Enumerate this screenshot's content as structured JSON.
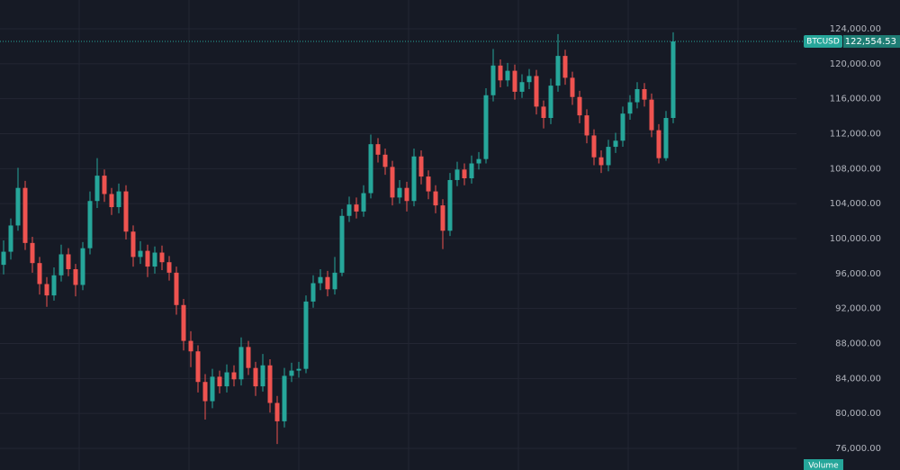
{
  "chart_data": {
    "type": "candlestick",
    "symbol": "BTCUSD",
    "last_price": 122554.53,
    "last_price_label": "122,554.53",
    "volume_label": "Volume",
    "up_color": "#26a69a",
    "down_color": "#ef5350",
    "grid": true,
    "ylim": [
      73528,
      127296
    ],
    "yticks": [
      {
        "value": 76000,
        "label": "76,000.00"
      },
      {
        "value": 80000,
        "label": "80,000.00"
      },
      {
        "value": 84000,
        "label": "84,000.00"
      },
      {
        "value": 88000,
        "label": "88,000.00"
      },
      {
        "value": 92000,
        "label": "92,000.00"
      },
      {
        "value": 96000,
        "label": "96,000.00"
      },
      {
        "value": 100000,
        "label": "100,000.00"
      },
      {
        "value": 104000,
        "label": "104,000.00"
      },
      {
        "value": 108000,
        "label": "108,000.00"
      },
      {
        "value": 112000,
        "label": "112,000.00"
      },
      {
        "value": 116000,
        "label": "116,000.00"
      },
      {
        "value": 120000,
        "label": "120,000.00"
      },
      {
        "value": 124000,
        "label": "124,000.00"
      }
    ],
    "open": [
      97000,
      98500,
      101500,
      105800,
      99500,
      97200,
      94800,
      93500,
      95800,
      98200,
      96500,
      94700,
      98900,
      104300,
      107200,
      105100,
      103600,
      105400,
      100800,
      97900,
      98600,
      96800,
      98400,
      97300,
      96100,
      92400,
      88300,
      87100,
      83600,
      81400,
      84200,
      83100,
      84700,
      83900,
      87600,
      85200,
      83100,
      85500,
      81200,
      79100,
      84300,
      84900,
      85100,
      92800,
      94900,
      95600,
      94200,
      96100,
      102600,
      103900,
      103100,
      105200,
      110800,
      109600,
      108200,
      104700,
      105800,
      104300,
      109400,
      107100,
      105400,
      103800,
      100900,
      106700,
      107900,
      106900,
      108600,
      109100,
      116400,
      119800,
      118100,
      119200,
      116800,
      117900,
      118600,
      115100,
      113800,
      117500,
      120900,
      118400,
      116200,
      114100,
      111800,
      109300,
      108400,
      110500,
      111200,
      114300,
      115600,
      117100,
      115900,
      112400,
      109200,
      113800
    ],
    "high": [
      99800,
      102300,
      108100,
      106600,
      100200,
      97900,
      95600,
      96700,
      99300,
      98900,
      97100,
      99600,
      105400,
      109200,
      107900,
      105800,
      106300,
      106100,
      101500,
      99700,
      99300,
      99100,
      99200,
      98000,
      96800,
      93100,
      89400,
      87800,
      84500,
      85100,
      84900,
      85600,
      85500,
      88700,
      88300,
      85900,
      86800,
      86200,
      82000,
      85200,
      85800,
      85900,
      93500,
      95800,
      96500,
      96300,
      97900,
      103400,
      104800,
      104700,
      106100,
      111900,
      111500,
      110300,
      108900,
      106700,
      106500,
      110300,
      110100,
      107800,
      106100,
      104500,
      107500,
      108800,
      108600,
      109500,
      109900,
      117200,
      121700,
      120500,
      120100,
      119900,
      118800,
      119400,
      119300,
      115800,
      118300,
      123400,
      121600,
      119100,
      116900,
      114800,
      112500,
      110100,
      111300,
      112100,
      115100,
      116400,
      117900,
      117800,
      116600,
      113100,
      114600,
      123600
    ],
    "low": [
      95900,
      97600,
      100900,
      98700,
      96100,
      93600,
      92200,
      92900,
      95100,
      95700,
      93400,
      94100,
      98200,
      103500,
      104200,
      102700,
      102900,
      99900,
      96800,
      97100,
      95600,
      96000,
      96400,
      95200,
      91300,
      87200,
      85300,
      82400,
      79300,
      80600,
      82300,
      82400,
      83100,
      83200,
      84400,
      82000,
      82500,
      80100,
      76500,
      78400,
      83600,
      84100,
      84600,
      92100,
      94100,
      93400,
      93600,
      95700,
      101900,
      102300,
      102500,
      104600,
      108700,
      107300,
      103800,
      104000,
      103100,
      103700,
      106200,
      104500,
      102900,
      98800,
      100300,
      106000,
      106100,
      106300,
      107900,
      108600,
      115700,
      117300,
      117400,
      115900,
      116100,
      117100,
      114200,
      112600,
      113100,
      116800,
      117600,
      115300,
      113200,
      110900,
      108400,
      107500,
      107700,
      109800,
      110500,
      113600,
      114900,
      115100,
      111600,
      108600,
      108900,
      113200
    ],
    "close": [
      98500,
      101500,
      105800,
      99500,
      97200,
      94800,
      93500,
      95800,
      98200,
      96500,
      94700,
      98900,
      104300,
      107200,
      105100,
      103600,
      105400,
      100800,
      97900,
      98600,
      96800,
      98400,
      97300,
      96100,
      92400,
      88300,
      87100,
      83600,
      81400,
      84200,
      83100,
      84700,
      83900,
      87600,
      85200,
      83100,
      85500,
      81200,
      79100,
      84300,
      84900,
      85100,
      92800,
      94900,
      95600,
      94200,
      96100,
      102600,
      103900,
      103100,
      105200,
      110800,
      109600,
      108200,
      104700,
      105800,
      104300,
      109400,
      107100,
      105400,
      103800,
      100900,
      106700,
      107900,
      106900,
      108600,
      109100,
      116400,
      119800,
      118100,
      119200,
      116800,
      117900,
      118600,
      115100,
      113800,
      117500,
      120900,
      118400,
      116200,
      114100,
      111800,
      109300,
      108400,
      110500,
      111200,
      114300,
      115600,
      117100,
      115900,
      112400,
      109200,
      113800,
      122554.53
    ]
  }
}
